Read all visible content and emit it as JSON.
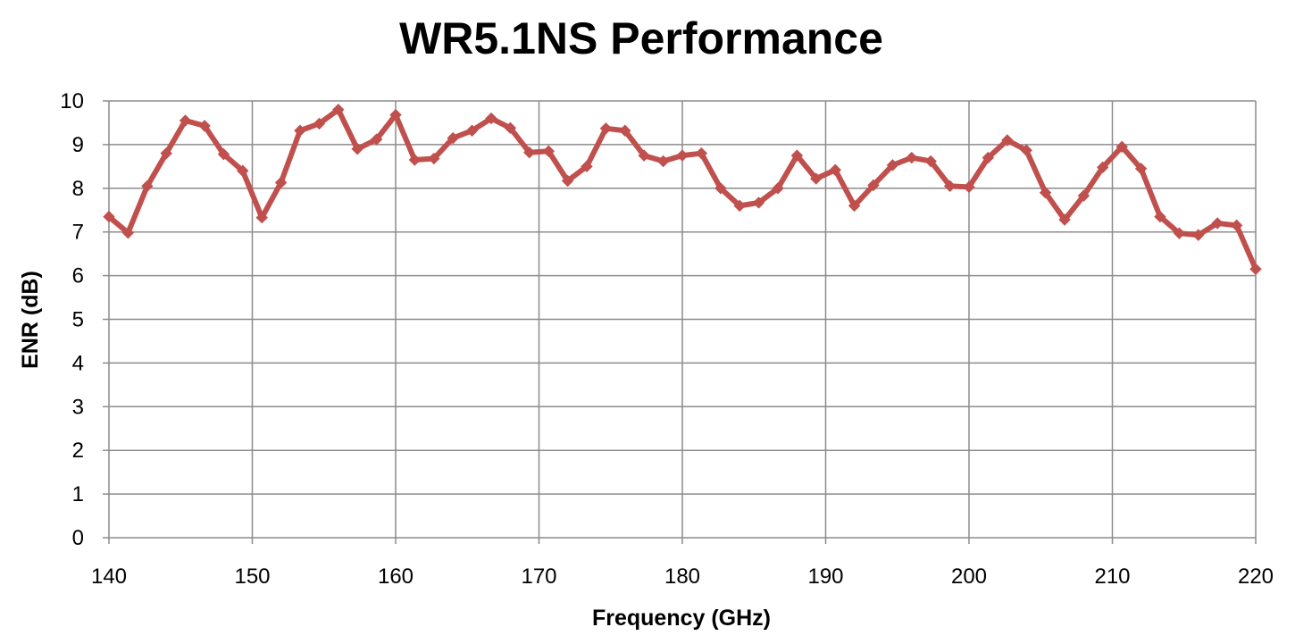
{
  "chart_data": {
    "type": "line",
    "title": "WR5.1NS Performance",
    "xlabel": "Frequency (GHz)",
    "ylabel": "ENR (dB)",
    "xlim": [
      140,
      220
    ],
    "ylim": [
      0,
      10
    ],
    "xticks": [
      140,
      150,
      160,
      170,
      180,
      190,
      200,
      210,
      220
    ],
    "yticks": [
      0,
      1,
      2,
      3,
      4,
      5,
      6,
      7,
      8,
      9,
      10
    ],
    "grid": true,
    "legend": "none",
    "series": [
      {
        "color": "#c0504d",
        "marker": "diamond",
        "x": [
          140,
          141.33,
          142.67,
          144,
          145.33,
          146.67,
          148,
          149.33,
          150.67,
          152,
          153.33,
          154.67,
          156,
          157.33,
          158.67,
          160,
          161.33,
          162.67,
          164,
          165.33,
          166.67,
          168,
          169.33,
          170.67,
          172,
          173.33,
          174.67,
          176,
          177.33,
          178.67,
          180,
          181.33,
          182.67,
          184,
          185.33,
          186.67,
          188,
          189.33,
          190.67,
          192,
          193.33,
          194.67,
          196,
          197.33,
          198.67,
          200,
          201.33,
          202.67,
          204,
          205.33,
          206.67,
          208,
          209.33,
          210.67,
          212,
          213.33,
          214.67,
          216,
          217.33,
          218.67,
          220
        ],
        "y": [
          7.35,
          6.98,
          8.05,
          8.8,
          9.55,
          9.43,
          8.78,
          8.4,
          7.33,
          8.13,
          9.32,
          9.48,
          9.8,
          8.9,
          9.12,
          9.68,
          8.65,
          8.68,
          9.15,
          9.32,
          9.6,
          9.38,
          8.82,
          8.85,
          8.17,
          8.5,
          9.37,
          9.32,
          8.75,
          8.62,
          8.75,
          8.8,
          8.0,
          7.6,
          7.67,
          8.0,
          8.75,
          8.22,
          8.42,
          7.6,
          8.07,
          8.53,
          8.7,
          8.62,
          8.05,
          8.03,
          8.7,
          9.1,
          8.87,
          7.9,
          7.28,
          7.83,
          8.48,
          8.95,
          8.45,
          7.35,
          6.97,
          6.93,
          7.2,
          7.15,
          6.15
        ]
      }
    ]
  }
}
